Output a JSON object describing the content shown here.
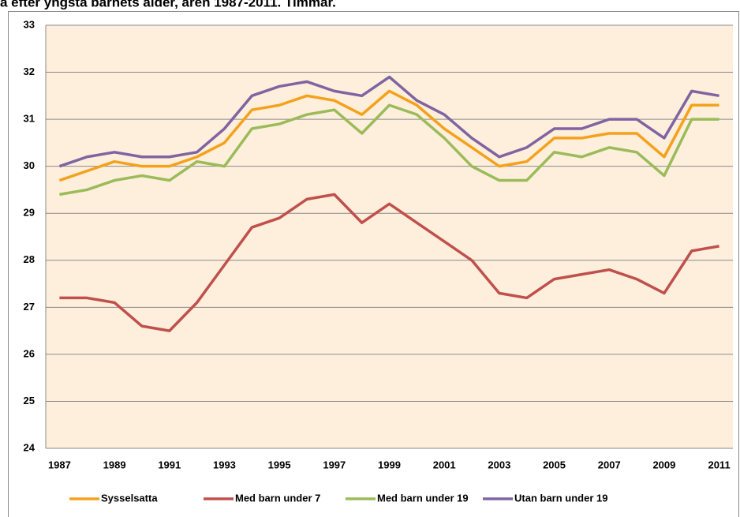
{
  "chart_data": {
    "type": "line",
    "title": "a efter yngsta barnets ålder, åren 1987-2011. Timmar.",
    "categories": [
      "1987",
      null,
      "1989",
      null,
      "1991",
      null,
      "1993",
      null,
      "1995",
      null,
      "1997",
      null,
      "1999",
      null,
      "2001",
      null,
      "2003",
      null,
      "2005",
      null,
      "2007",
      null,
      "2009",
      null,
      "2011"
    ],
    "series": [
      {
        "name": "Sysselsatta",
        "color": "#f5a11c",
        "values": [
          29.7,
          29.9,
          30.1,
          30.0,
          30.0,
          30.2,
          30.5,
          31.2,
          31.3,
          31.5,
          31.4,
          31.1,
          31.6,
          31.3,
          30.8,
          30.4,
          30.0,
          30.1,
          30.6,
          30.6,
          30.7,
          30.7,
          30.2,
          31.3,
          31.3
        ]
      },
      {
        "name": "Med barn under 7",
        "color": "#c0504d",
        "values": [
          27.2,
          27.2,
          27.1,
          26.6,
          26.5,
          27.1,
          27.9,
          28.7,
          28.9,
          29.3,
          29.4,
          28.8,
          29.2,
          28.8,
          28.4,
          28.0,
          27.3,
          27.2,
          27.6,
          27.7,
          27.8,
          27.6,
          27.3,
          28.2,
          28.3
        ]
      },
      {
        "name": "Med barn under 19",
        "color": "#9bbb59",
        "values": [
          29.4,
          29.5,
          29.7,
          29.8,
          29.7,
          30.1,
          30.0,
          30.8,
          30.9,
          31.1,
          31.2,
          30.7,
          31.3,
          31.1,
          30.6,
          30.0,
          29.7,
          29.7,
          30.3,
          30.2,
          30.4,
          30.3,
          29.8,
          31.0,
          31.0
        ]
      },
      {
        "name": "Utan barn under 19",
        "color": "#8064a2",
        "values": [
          30.0,
          30.2,
          30.3,
          30.2,
          30.2,
          30.3,
          30.8,
          31.5,
          31.7,
          31.8,
          31.6,
          31.5,
          31.9,
          31.4,
          31.1,
          30.6,
          30.2,
          30.4,
          30.8,
          30.8,
          31.0,
          31.0,
          30.6,
          31.6,
          31.5
        ]
      }
    ],
    "ylim": [
      24,
      33
    ],
    "yticks": [
      24,
      25,
      26,
      27,
      28,
      29,
      30,
      31,
      32,
      33
    ],
    "grid": true
  }
}
